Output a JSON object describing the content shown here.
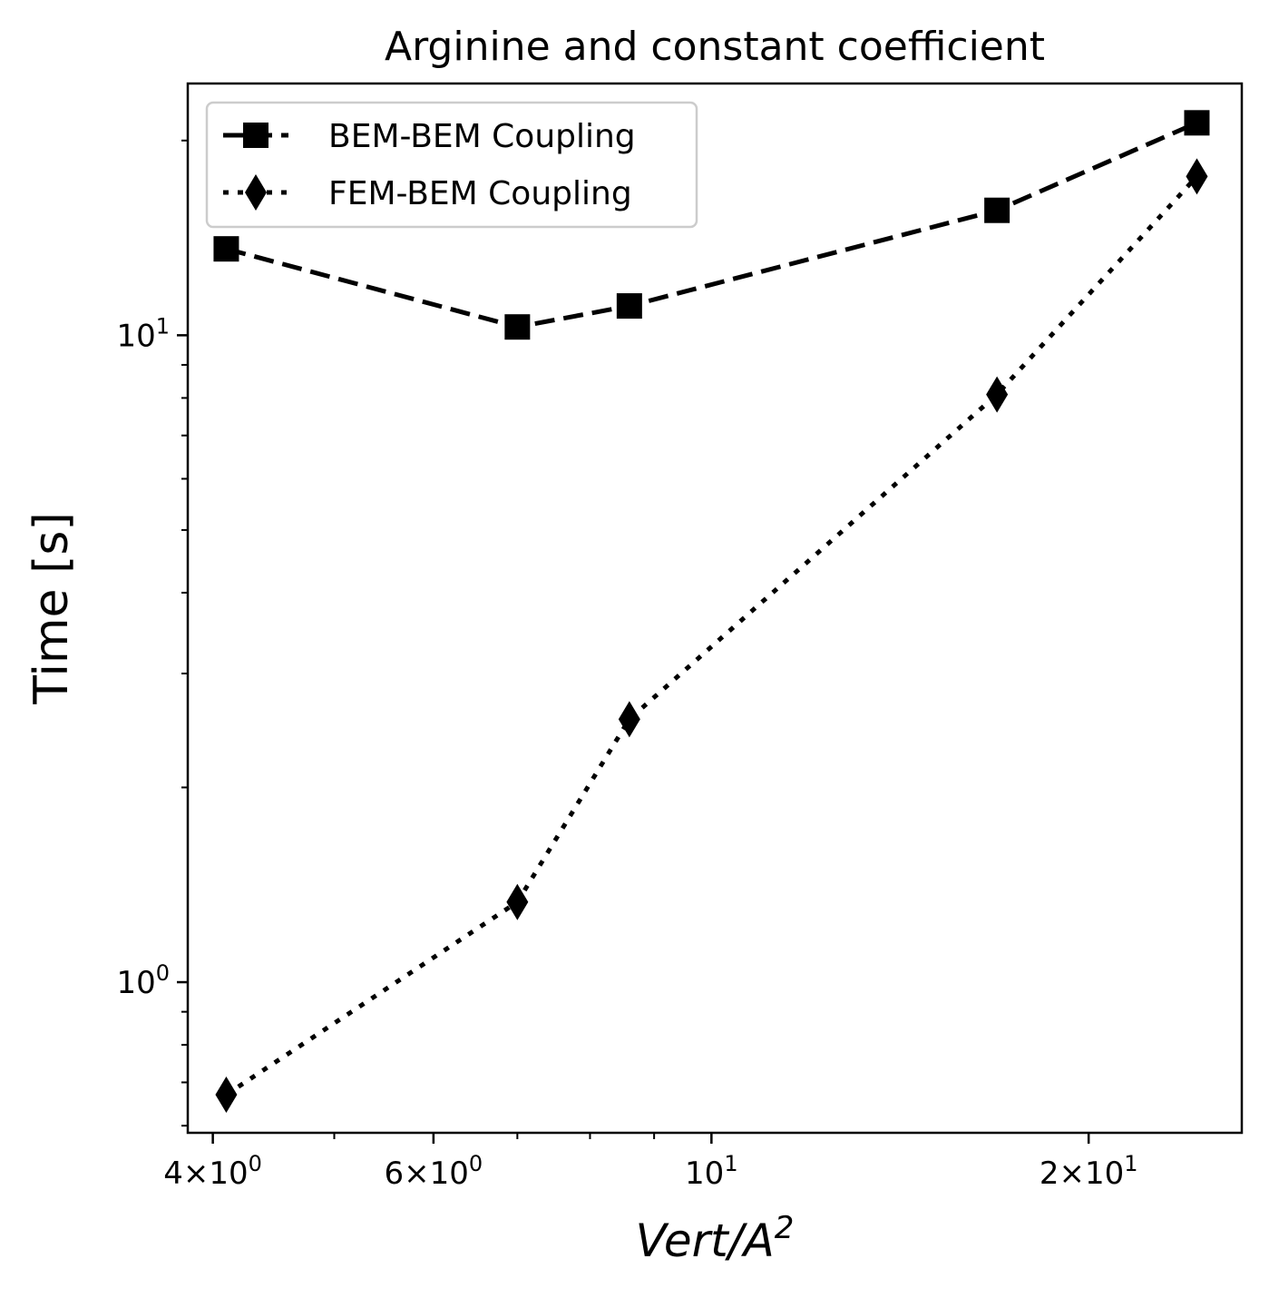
{
  "chart_data": {
    "type": "line",
    "title": "Arginine and constant coefficient",
    "xlabel": "Vert/A",
    "xlabel_sup": "2",
    "ylabel": "Time [s]",
    "xscale": "log",
    "yscale": "log",
    "xlim": [
      3.82,
      26.5
    ],
    "ylim": [
      0.585,
      24.5
    ],
    "x_ticks": [
      {
        "value": 4,
        "mantissa": "4×10",
        "exp": "0"
      },
      {
        "value": 6,
        "mantissa": "6×10",
        "exp": "0"
      },
      {
        "value": 10,
        "mantissa": "10",
        "exp": "1"
      },
      {
        "value": 20,
        "mantissa": "2×10",
        "exp": "1"
      }
    ],
    "y_ticks": [
      {
        "value": 1,
        "mantissa": "10",
        "exp": "0"
      },
      {
        "value": 10,
        "mantissa": "10",
        "exp": "1"
      }
    ],
    "legend_position": "top-left",
    "grid": false,
    "series": [
      {
        "name": "BEM-BEM Coupling",
        "marker": "square",
        "linestyle": "dashed",
        "color": "#000000",
        "x": [
          4.1,
          7.0,
          8.6,
          16.9,
          24.4
        ],
        "y": [
          13.6,
          10.3,
          11.1,
          15.6,
          21.3
        ]
      },
      {
        "name": "FEM-BEM Coupling",
        "marker": "diamond",
        "linestyle": "dotted",
        "color": "#000000",
        "x": [
          4.1,
          7.0,
          8.6,
          16.9,
          24.4
        ],
        "y": [
          0.67,
          1.33,
          2.55,
          8.1,
          17.6
        ]
      }
    ]
  }
}
